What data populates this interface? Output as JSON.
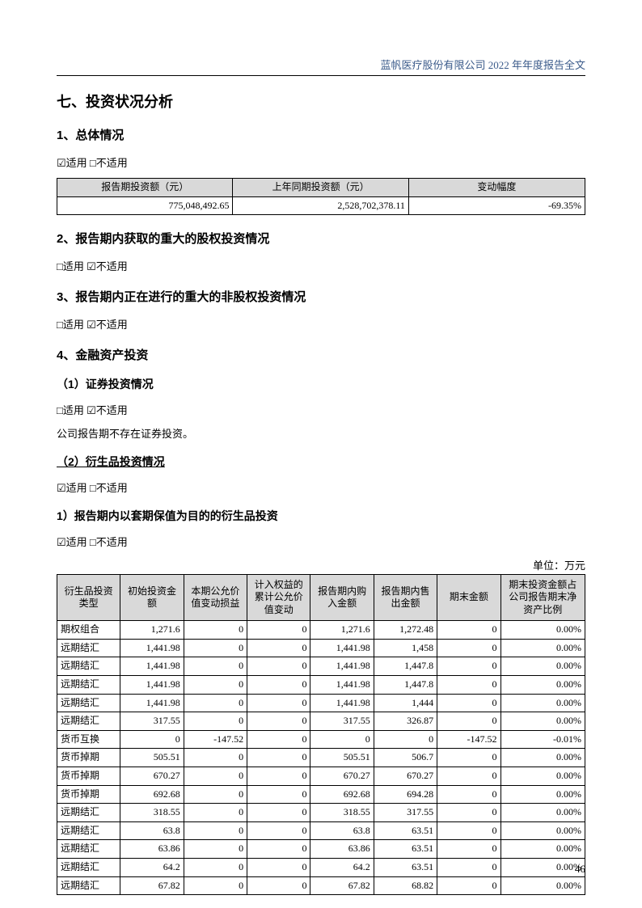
{
  "header": "蓝帆医疗股份有限公司 2022 年年度报告全文",
  "sec7": "七、投资状况分析",
  "s1": {
    "title": "1、总体情况",
    "applies": "☑适用 □不适用",
    "table": {
      "cols": [
        "报告期投资额（元）",
        "上年同期投资额（元）",
        "变动幅度"
      ],
      "row": [
        "775,048,492.65",
        "2,528,702,378.11",
        "-69.35%"
      ]
    }
  },
  "s2": {
    "title": "2、报告期内获取的重大的股权投资情况",
    "applies": "□适用 ☑不适用"
  },
  "s3": {
    "title": "3、报告期内正在进行的重大的非股权投资情况",
    "applies": "□适用 ☑不适用"
  },
  "s4": {
    "title": "4、金融资产投资",
    "sub1": {
      "title": "（1）证券投资情况",
      "applies": "□适用 ☑不适用",
      "note": "公司报告期不存在证券投资。"
    },
    "sub2": {
      "title": "（2）衍生品投资情况",
      "applies": "☑适用 □不适用",
      "sub": {
        "title": "1）报告期内以套期保值为目的的衍生品投资",
        "applies": "☑适用 □不适用",
        "unit": "单位：万元",
        "cols": [
          "衍生品投资类型",
          "初始投资金额",
          "本期公允价值变动损益",
          "计入权益的累计公允价值变动",
          "报告期内购入金额",
          "报告期内售出金额",
          "期末金额",
          "期末投资金额占公司报告期末净资产比例"
        ],
        "rows": [
          [
            "期权组合",
            "1,271.6",
            "0",
            "0",
            "1,271.6",
            "1,272.48",
            "0",
            "0.00%"
          ],
          [
            "远期结汇",
            "1,441.98",
            "0",
            "0",
            "1,441.98",
            "1,458",
            "0",
            "0.00%"
          ],
          [
            "远期结汇",
            "1,441.98",
            "0",
            "0",
            "1,441.98",
            "1,447.8",
            "0",
            "0.00%"
          ],
          [
            "远期结汇",
            "1,441.98",
            "0",
            "0",
            "1,441.98",
            "1,447.8",
            "0",
            "0.00%"
          ],
          [
            "远期结汇",
            "1,441.98",
            "0",
            "0",
            "1,441.98",
            "1,444",
            "0",
            "0.00%"
          ],
          [
            "远期结汇",
            "317.55",
            "0",
            "0",
            "317.55",
            "326.87",
            "0",
            "0.00%"
          ],
          [
            "货币互换",
            "0",
            "-147.52",
            "0",
            "0",
            "0",
            "-147.52",
            "-0.01%"
          ],
          [
            "货币掉期",
            "505.51",
            "0",
            "0",
            "505.51",
            "506.7",
            "0",
            "0.00%"
          ],
          [
            "货币掉期",
            "670.27",
            "0",
            "0",
            "670.27",
            "670.27",
            "0",
            "0.00%"
          ],
          [
            "货币掉期",
            "692.68",
            "0",
            "0",
            "692.68",
            "694.28",
            "0",
            "0.00%"
          ],
          [
            "远期结汇",
            "318.55",
            "0",
            "0",
            "318.55",
            "317.55",
            "0",
            "0.00%"
          ],
          [
            "远期结汇",
            "63.8",
            "0",
            "0",
            "63.8",
            "63.51",
            "0",
            "0.00%"
          ],
          [
            "远期结汇",
            "63.86",
            "0",
            "0",
            "63.86",
            "63.51",
            "0",
            "0.00%"
          ],
          [
            "远期结汇",
            "64.2",
            "0",
            "0",
            "64.2",
            "63.51",
            "0",
            "0.00%"
          ],
          [
            "远期结汇",
            "67.82",
            "0",
            "0",
            "67.82",
            "68.82",
            "0",
            "0.00%"
          ]
        ]
      }
    }
  },
  "page": "46"
}
